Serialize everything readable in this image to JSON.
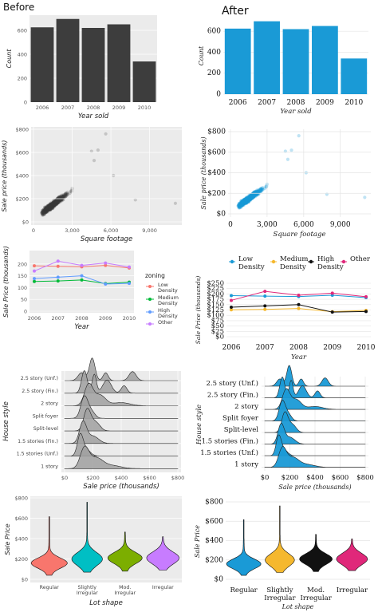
{
  "titles": {
    "before": "Before",
    "after": "After"
  },
  "colors": {
    "before_bar": "#3d3d3d",
    "after_bar": "#1a9ad6",
    "before_panel": "#ebebeb",
    "low": "#f8766d",
    "medium": "#00ba38",
    "high": "#619cff",
    "other": "#c77cff",
    "after_low": "#1a9ad6",
    "after_medium": "#f5b82e",
    "after_high": "#111111",
    "after_other": "#e0287a"
  },
  "chart_data": [
    {
      "id": "year_sold",
      "type": "bar",
      "categories": [
        "2006",
        "2007",
        "2008",
        "2009",
        "2010"
      ],
      "values": [
        625,
        695,
        620,
        650,
        340
      ],
      "xlabel": "Year sold",
      "ylabel": "Count",
      "ylim": [
        0,
        700
      ],
      "yticks": [
        "0",
        "200",
        "400",
        "600"
      ]
    },
    {
      "id": "price_vs_sqft",
      "type": "scatter",
      "xlabel": "Square footage",
      "ylabel": "Sale price (thousands)",
      "xlim": [
        0,
        11500
      ],
      "ylim": [
        0,
        800
      ],
      "xticks": [
        "0",
        "3,000",
        "6,000",
        "9,000"
      ],
      "yticks": [
        "$0",
        "$200",
        "$400",
        "$600",
        "$800"
      ]
    },
    {
      "id": "price_by_zoning",
      "type": "line",
      "categories": [
        "2006",
        "2007",
        "2008",
        "2009",
        "2010"
      ],
      "xlabel": "Year",
      "ylabel": "Sale Price (thousands)",
      "ylim": [
        0,
        250
      ],
      "yticks": [
        "$0",
        "$25",
        "$50",
        "$75",
        "$100",
        "$125",
        "$150",
        "$175",
        "$200",
        "$225",
        "$250"
      ],
      "legend_title": "zoning",
      "series": [
        {
          "name": "Low Density",
          "values": [
            192,
            190,
            188,
            194,
            183
          ]
        },
        {
          "name": "Medium Density",
          "values": [
            126,
            128,
            132,
            117,
            123
          ]
        },
        {
          "name": "High Density",
          "values": [
            138,
            144,
            150,
            115,
            118
          ]
        },
        {
          "name": "Other",
          "values": [
            170,
            212,
            194,
            204,
            187
          ]
        }
      ]
    },
    {
      "id": "house_style_ridges",
      "type": "area",
      "xlabel": "Sale price (thousands)",
      "ylabel": "House style",
      "xlim": [
        0,
        800
      ],
      "xticks": [
        "$0",
        "$200",
        "$400",
        "$600",
        "$800"
      ],
      "categories": [
        "2.5 story (Unf.)",
        "2.5 story (Fin.)",
        "2 story",
        "Split foyer",
        "Split-level",
        "1.5 stories (Fin.)",
        "1.5 stories (Unf.)",
        "1 story"
      ],
      "after_categories": [
        "2.5 story (Unf.)",
        "2.5 story (Fin.)",
        "2 story",
        "Split foyer",
        "Split-level",
        "1.5 stories (Fin.)",
        "1.5 stories (Unf.)",
        "1 story"
      ]
    },
    {
      "id": "lot_shape_violin",
      "type": "area",
      "categories": [
        "Regular",
        "Slightly Irregular",
        "Mod. Irregular",
        "Irregular"
      ],
      "xlabel": "Lot shape",
      "ylabel": "Sale Price",
      "ylim": [
        0,
        800
      ],
      "yticks": [
        "$0",
        "$200",
        "$400",
        "$600",
        "$800"
      ],
      "before_colors": [
        "#f8766d",
        "#00bfc4",
        "#7cae00",
        "#c77cff"
      ],
      "after_colors": [
        "#1a9ad6",
        "#f5b82e",
        "#111111",
        "#e0287a"
      ]
    }
  ]
}
